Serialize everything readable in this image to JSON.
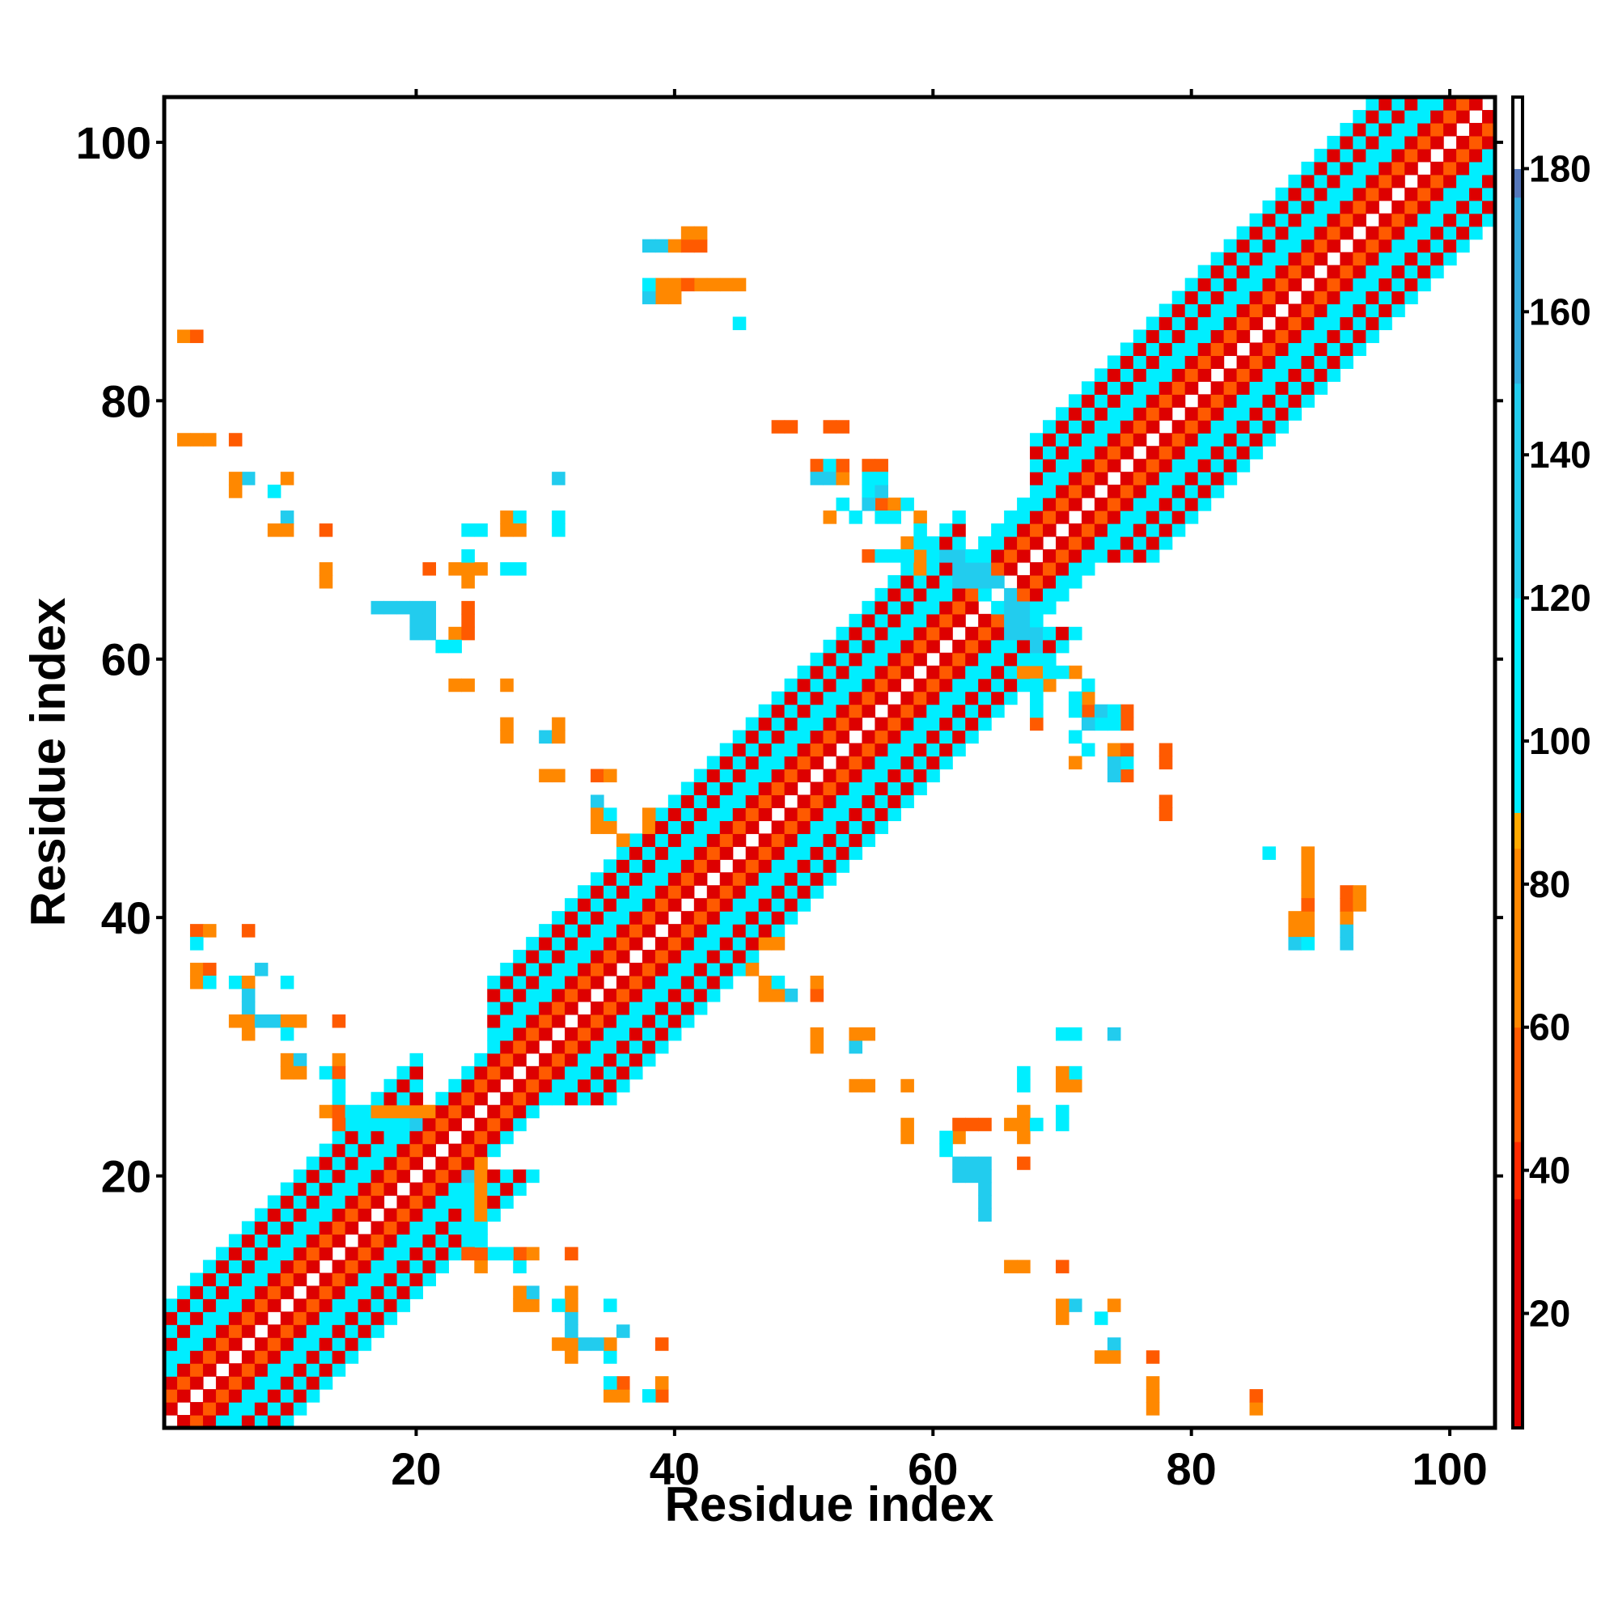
{
  "chart_data": {
    "type": "heatmap",
    "title": "",
    "xlabel": "Residue index",
    "ylabel": "Residue index",
    "xlim": [
      1,
      103
    ],
    "ylim": [
      1,
      103
    ],
    "x_ticks": [
      20,
      40,
      60,
      80,
      100
    ],
    "y_ticks": [
      20,
      40,
      60,
      80,
      100
    ],
    "colorbar": {
      "range": [
        4,
        190
      ],
      "ticks": [
        20,
        40,
        60,
        80,
        100,
        120,
        140,
        160,
        180
      ],
      "stops": [
        {
          "value": 4,
          "color": "#dd0000"
        },
        {
          "value": 36,
          "color": "#ff2a00"
        },
        {
          "value": 44,
          "color": "#ff5a00"
        },
        {
          "value": 60,
          "color": "#ff8800"
        },
        {
          "value": 85,
          "color": "#ffaa00"
        },
        {
          "value": 90,
          "color": "#00eeff"
        },
        {
          "value": 120,
          "color": "#22ccee"
        },
        {
          "value": 150,
          "color": "#33aadd"
        },
        {
          "value": 176,
          "color": "#5577bb"
        },
        {
          "value": 180,
          "color": "#ffffff"
        },
        {
          "value": 190,
          "color": "#ffffff"
        }
      ]
    },
    "diagonal_band": {
      "note_values": "distance-contact values along the near-diagonal band; pattern alternates with |i-j|",
      "pattern": [
        {
          "offset": 1,
          "value": 15
        },
        {
          "offset": 2,
          "value": 45
        },
        {
          "offset": 3,
          "value": 25
        },
        {
          "offset": 4,
          "value": 95
        },
        {
          "offset": 5,
          "value": 110
        },
        {
          "offset": 6,
          "value": 30
        },
        {
          "offset": 7,
          "value": 100
        },
        {
          "offset": 8,
          "value": 35
        },
        {
          "offset": 9,
          "value": 95
        }
      ],
      "segments": [
        {
          "start": 1,
          "end": 20,
          "width": 9
        },
        {
          "start": 20,
          "end": 26,
          "width": 4
        },
        {
          "start": 26,
          "end": 45,
          "width": 9
        },
        {
          "start": 45,
          "end": 62,
          "width": 9
        },
        {
          "start": 62,
          "end": 68,
          "width": 5
        },
        {
          "start": 68,
          "end": 83,
          "width": 9
        },
        {
          "start": 83,
          "end": 103,
          "width": 9
        }
      ]
    },
    "points": [
      [
        2,
        85,
        70
      ],
      [
        3,
        77,
        70
      ],
      [
        4,
        77,
        70
      ],
      [
        6,
        77,
        70
      ],
      [
        6,
        73,
        70
      ],
      [
        7,
        74,
        110
      ],
      [
        9,
        73,
        100
      ],
      [
        10,
        74,
        70
      ],
      [
        10,
        71,
        130
      ],
      [
        9,
        70,
        70
      ],
      [
        10,
        70,
        70
      ],
      [
        13,
        70,
        70
      ],
      [
        13,
        67,
        70
      ],
      [
        13,
        66,
        70
      ],
      [
        17,
        64,
        140
      ],
      [
        18,
        64,
        140
      ],
      [
        19,
        64,
        140
      ],
      [
        20,
        64,
        110
      ],
      [
        20,
        63,
        130
      ],
      [
        21,
        63,
        130
      ],
      [
        20,
        62,
        130
      ],
      [
        21,
        62,
        130
      ],
      [
        22,
        61,
        100
      ],
      [
        21,
        67,
        55
      ],
      [
        23,
        67,
        70
      ],
      [
        24,
        67,
        70
      ],
      [
        24,
        68,
        70
      ],
      [
        25,
        67,
        100
      ],
      [
        24,
        64,
        55
      ],
      [
        24,
        63,
        55
      ],
      [
        23,
        62,
        70
      ],
      [
        24,
        62,
        70
      ],
      [
        25,
        70,
        100
      ],
      [
        27,
        71,
        70
      ],
      [
        28,
        71,
        100
      ],
      [
        28,
        70,
        70
      ],
      [
        27,
        67,
        100
      ],
      [
        28,
        67,
        130
      ],
      [
        31,
        74,
        110
      ],
      [
        31,
        71,
        100
      ],
      [
        31,
        70,
        100
      ],
      [
        23,
        58,
        70
      ],
      [
        24,
        58,
        70
      ],
      [
        27,
        58,
        70
      ],
      [
        27,
        55,
        70
      ],
      [
        27,
        54,
        70
      ],
      [
        30,
        54,
        100
      ],
      [
        31,
        54,
        55
      ],
      [
        31,
        55,
        70
      ],
      [
        30,
        51,
        70
      ],
      [
        31,
        51,
        70
      ],
      [
        34,
        51,
        70
      ],
      [
        35,
        51,
        70
      ],
      [
        34,
        49,
        100
      ],
      [
        34,
        48,
        70
      ],
      [
        34,
        47,
        70
      ],
      [
        35,
        47,
        70
      ],
      [
        38,
        48,
        70
      ],
      [
        38,
        47,
        70
      ],
      [
        39,
        92,
        130
      ],
      [
        40,
        92,
        55
      ],
      [
        41,
        92,
        55
      ],
      [
        42,
        92,
        55
      ],
      [
        42,
        93,
        70
      ],
      [
        39,
        89,
        100
      ],
      [
        40,
        89,
        70
      ],
      [
        39,
        88,
        130
      ],
      [
        40,
        88,
        70
      ],
      [
        42,
        89,
        55
      ],
      [
        43,
        89,
        70
      ],
      [
        44,
        89,
        70
      ],
      [
        45,
        89,
        70
      ],
      [
        45,
        86,
        110
      ],
      [
        48,
        78,
        55
      ],
      [
        52,
        78,
        55
      ],
      [
        51,
        75,
        55
      ],
      [
        52,
        75,
        70
      ],
      [
        51,
        74,
        130
      ],
      [
        52,
        74,
        70
      ],
      [
        55,
        75,
        55
      ],
      [
        56,
        75,
        70
      ],
      [
        55,
        74,
        100
      ],
      [
        55,
        73,
        100
      ],
      [
        56,
        72,
        70
      ],
      [
        57,
        72,
        70
      ],
      [
        55,
        72,
        130
      ],
      [
        54,
        71,
        100
      ],
      [
        56,
        71,
        55
      ],
      [
        57,
        71,
        100
      ],
      [
        59,
        71,
        100
      ],
      [
        52,
        71,
        70
      ],
      [
        55,
        68,
        55
      ],
      [
        56,
        68,
        130
      ],
      [
        58,
        69,
        70
      ],
      [
        58,
        68,
        100
      ],
      [
        59,
        67,
        70
      ],
      [
        59,
        70,
        100
      ],
      [
        63,
        67,
        140
      ],
      [
        64,
        67,
        140
      ],
      [
        62,
        66,
        140
      ],
      [
        63,
        66,
        140
      ],
      [
        64,
        65,
        110
      ],
      [
        65,
        66,
        140
      ],
      [
        66,
        64,
        120
      ],
      [
        67,
        63,
        140
      ],
      [
        67,
        62,
        140
      ],
      [
        68,
        62,
        140
      ],
      [
        68,
        61,
        140
      ],
      [
        68,
        60,
        110
      ],
      [
        67,
        59,
        70
      ],
      [
        68,
        59,
        70
      ],
      [
        69,
        59,
        100
      ],
      [
        71,
        59,
        70
      ],
      [
        72,
        58,
        100
      ],
      [
        68,
        57,
        100
      ],
      [
        72,
        57,
        70
      ],
      [
        68,
        56,
        110
      ],
      [
        71,
        56,
        110
      ],
      [
        72,
        56,
        55
      ],
      [
        73,
        56,
        130
      ],
      [
        74,
        56,
        100
      ],
      [
        75,
        56,
        55
      ],
      [
        72,
        53,
        100
      ],
      [
        71,
        52,
        70
      ],
      [
        74,
        53,
        70
      ],
      [
        75,
        53,
        55
      ],
      [
        74,
        52,
        130
      ],
      [
        75,
        52,
        100
      ],
      [
        78,
        53,
        55
      ],
      [
        78,
        49,
        55
      ],
      [
        86,
        45,
        110
      ],
      [
        89,
        45,
        70
      ],
      [
        89,
        44,
        70
      ],
      [
        89,
        43,
        70
      ],
      [
        89,
        42,
        70
      ],
      [
        89,
        41,
        55
      ],
      [
        92,
        41,
        55
      ],
      [
        93,
        41,
        70
      ],
      [
        92,
        40,
        70
      ],
      [
        88,
        39,
        70
      ],
      [
        89,
        39,
        70
      ],
      [
        88,
        38,
        130
      ],
      [
        89,
        38,
        100
      ],
      [
        92,
        38,
        130
      ],
      [
        3,
        39,
        70
      ],
      [
        4,
        39,
        70
      ],
      [
        3,
        38,
        110
      ],
      [
        7,
        39,
        55
      ],
      [
        3,
        36,
        70
      ],
      [
        4,
        36,
        100
      ],
      [
        3,
        35,
        70
      ],
      [
        4,
        35,
        70
      ],
      [
        6,
        35,
        100
      ],
      [
        7,
        35,
        130
      ],
      [
        8,
        36,
        130
      ],
      [
        10,
        35,
        100
      ],
      [
        7,
        34,
        100
      ],
      [
        7,
        33,
        100
      ],
      [
        6,
        32,
        70
      ],
      [
        7,
        32,
        70
      ],
      [
        8,
        32,
        130
      ],
      [
        9,
        32,
        130
      ],
      [
        10,
        32,
        70
      ],
      [
        11,
        32,
        70
      ],
      [
        14,
        32,
        55
      ],
      [
        7,
        31,
        70
      ],
      [
        10,
        29,
        70
      ],
      [
        11,
        29,
        130
      ],
      [
        13,
        28,
        110
      ],
      [
        14,
        29,
        70
      ],
      [
        10,
        28,
        70
      ],
      [
        11,
        28,
        70
      ],
      [
        14,
        28,
        70
      ],
      [
        14,
        27,
        130
      ],
      [
        14,
        26,
        110
      ],
      [
        13,
        25,
        70
      ],
      [
        14,
        25,
        70
      ],
      [
        15,
        25,
        55
      ],
      [
        14,
        24,
        55
      ],
      [
        16,
        24,
        100
      ],
      [
        17,
        25,
        70
      ],
      [
        18,
        25,
        70
      ],
      [
        19,
        25,
        70
      ],
      [
        20,
        25,
        70
      ],
      [
        21,
        25,
        70
      ],
      [
        17,
        24,
        110
      ],
      [
        18,
        24,
        100
      ],
      [
        19,
        24,
        110
      ],
      [
        20,
        24,
        130
      ],
      [
        25,
        15,
        110
      ],
      [
        24,
        14,
        55
      ],
      [
        25,
        14,
        55
      ],
      [
        26,
        14,
        100
      ],
      [
        27,
        14,
        100
      ],
      [
        28,
        14,
        55
      ],
      [
        29,
        14,
        70
      ],
      [
        32,
        14,
        55
      ],
      [
        25,
        13,
        70
      ],
      [
        28,
        11,
        70
      ],
      [
        29,
        11,
        130
      ],
      [
        28,
        10,
        70
      ],
      [
        29,
        10,
        70
      ],
      [
        31,
        10,
        100
      ],
      [
        32,
        10,
        70
      ],
      [
        32,
        11,
        70
      ],
      [
        35,
        10,
        100
      ],
      [
        32,
        9,
        130
      ],
      [
        32,
        8,
        130
      ],
      [
        31,
        7,
        70
      ],
      [
        32,
        7,
        70
      ],
      [
        33,
        7,
        130
      ],
      [
        34,
        7,
        130
      ],
      [
        35,
        7,
        70
      ],
      [
        36,
        8,
        130
      ],
      [
        35,
        6,
        110
      ],
      [
        39,
        7,
        55
      ],
      [
        35,
        4,
        110
      ],
      [
        36,
        4,
        55
      ],
      [
        35,
        3,
        70
      ],
      [
        36,
        3,
        70
      ],
      [
        38,
        3,
        110
      ],
      [
        39,
        3,
        55
      ],
      [
        39,
        4,
        70
      ],
      [
        47,
        38,
        70
      ],
      [
        48,
        38,
        70
      ],
      [
        46,
        36,
        70
      ],
      [
        48,
        35,
        100
      ],
      [
        49,
        34,
        130
      ],
      [
        51,
        35,
        70
      ],
      [
        51,
        34,
        55
      ],
      [
        47,
        34,
        70
      ],
      [
        48,
        34,
        70
      ],
      [
        51,
        31,
        70
      ],
      [
        51,
        30,
        70
      ],
      [
        54,
        31,
        70
      ],
      [
        55,
        31,
        70
      ],
      [
        54,
        30,
        130
      ],
      [
        54,
        27,
        70
      ],
      [
        55,
        27,
        70
      ],
      [
        58,
        27,
        70
      ],
      [
        58,
        24,
        70
      ],
      [
        58,
        23,
        70
      ],
      [
        61,
        23,
        110
      ],
      [
        62,
        24,
        55
      ],
      [
        63,
        24,
        55
      ],
      [
        64,
        24,
        55
      ],
      [
        62,
        23,
        70
      ],
      [
        63,
        21,
        130
      ],
      [
        64,
        21,
        140
      ],
      [
        62,
        21,
        130
      ],
      [
        62,
        20,
        130
      ],
      [
        63,
        20,
        130
      ],
      [
        64,
        20,
        120
      ],
      [
        64,
        19,
        130
      ],
      [
        64,
        18,
        130
      ],
      [
        64,
        17,
        130
      ],
      [
        66,
        24,
        70
      ],
      [
        67,
        24,
        70
      ],
      [
        67,
        25,
        70
      ],
      [
        68,
        24,
        110
      ],
      [
        67,
        23,
        70
      ],
      [
        70,
        24,
        100
      ],
      [
        67,
        21,
        55
      ],
      [
        67,
        28,
        110
      ],
      [
        67,
        27,
        100
      ],
      [
        70,
        28,
        70
      ],
      [
        71,
        28,
        100
      ],
      [
        70,
        27,
        70
      ],
      [
        71,
        27,
        70
      ],
      [
        70,
        31,
        100
      ],
      [
        71,
        31,
        100
      ],
      [
        74,
        31,
        130
      ],
      [
        66,
        13,
        70
      ],
      [
        67,
        13,
        70
      ],
      [
        70,
        13,
        55
      ],
      [
        70,
        10,
        70
      ],
      [
        71,
        10,
        130
      ],
      [
        70,
        9,
        70
      ],
      [
        74,
        10,
        70
      ],
      [
        73,
        9,
        100
      ],
      [
        74,
        7,
        130
      ],
      [
        73,
        6,
        70
      ],
      [
        74,
        6,
        70
      ],
      [
        77,
        6,
        55
      ],
      [
        77,
        3,
        70
      ],
      [
        77,
        2,
        70
      ],
      [
        85,
        3,
        55
      ]
    ]
  }
}
